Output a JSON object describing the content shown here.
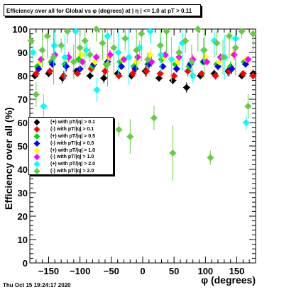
{
  "header": {
    "title": "Efficiency over all for Global vs φ (degrees) at | η | <= 1.0 at pT > 0.11",
    "timestamp": "Thu Oct 15 19:24:17 2020"
  },
  "chart_data": {
    "type": "scatter",
    "title": "Efficiency over all for Global vs φ (degrees) at | η | <= 1.0 at pT > 0.11",
    "xlabel": "φ (degrees)",
    "ylabel": "Efficiency over all (%)",
    "xlim": [
      -180,
      180
    ],
    "ylim": [
      0,
      100
    ],
    "x_ticks": [
      -150,
      -100,
      -50,
      0,
      50,
      100,
      150
    ],
    "x_tick_labels": [
      "−150",
      "−100",
      "−50",
      "0",
      "50",
      "100",
      "150"
    ],
    "y_ticks": [
      0,
      10,
      20,
      30,
      40,
      50,
      60,
      70,
      80,
      90,
      100
    ],
    "y_tick_labels": [
      "0",
      "10",
      "20",
      "30",
      "40",
      "50",
      "60",
      "70",
      "80",
      "90",
      "100"
    ],
    "grid": false,
    "legend_position": "left-middle",
    "series": [
      {
        "name": "(+) with pT/|q| > 0.1",
        "color": "#000000",
        "marker": "diamond",
        "x": [
          -172,
          -150,
          -128,
          -106,
          -84,
          -62,
          -40,
          -18,
          4,
          26,
          48,
          70,
          92,
          114,
          136,
          158,
          176
        ],
        "y": [
          80,
          81,
          79,
          82,
          80,
          79,
          81,
          80,
          82,
          79,
          78,
          75,
          80,
          81,
          82,
          80,
          81
        ]
      },
      {
        "name": "(-) with pT/|q| > 0.1",
        "color": "#ff0000",
        "marker": "diamond",
        "x": [
          -170,
          -148,
          -126,
          -104,
          -82,
          -60,
          -38,
          -16,
          6,
          28,
          50,
          72,
          94,
          116,
          138,
          160,
          176
        ],
        "y": [
          81,
          82,
          80,
          81,
          83,
          82,
          80,
          81,
          82,
          81,
          80,
          82,
          81,
          80,
          82,
          81,
          80
        ]
      },
      {
        "name": "(+) with pT/|q| > 0.5",
        "color": "#00dd00",
        "marker": "diamond",
        "x": [
          -168,
          -146,
          -124,
          -102,
          -80,
          -58,
          -36,
          -14,
          8,
          30,
          52,
          74,
          96,
          118,
          140,
          162
        ],
        "y": [
          84,
          86,
          85,
          87,
          84,
          85,
          86,
          84,
          85,
          87,
          85,
          84,
          86,
          85,
          84,
          86
        ]
      },
      {
        "name": "(-) with pT/|q| > 0.5",
        "color": "#0000ff",
        "marker": "diamond",
        "x": [
          -166,
          -144,
          -122,
          -100,
          -78,
          -56,
          -34,
          -12,
          10,
          32,
          54,
          76,
          98,
          120,
          142,
          164
        ],
        "y": [
          83,
          85,
          84,
          83,
          85,
          86,
          84,
          83,
          85,
          84,
          83,
          85,
          86,
          84,
          83,
          85
        ]
      },
      {
        "name": "(+) with pT/|q| > 1.0",
        "color": "#ffff00",
        "marker": "diamond",
        "x": [
          -164,
          -142,
          -120,
          -98,
          -76,
          -54,
          -32,
          -10,
          12,
          34,
          56,
          78,
          100,
          122,
          144,
          166
        ],
        "y": [
          86,
          88,
          87,
          89,
          86,
          88,
          87,
          86,
          89,
          88,
          86,
          87,
          88,
          86,
          89,
          87
        ]
      },
      {
        "name": "(-) with pT/|q| > 1.0",
        "color": "#ff00ff",
        "marker": "diamond",
        "x": [
          -162,
          -140,
          -118,
          -96,
          -74,
          -52,
          -30,
          -8,
          14,
          36,
          58,
          80,
          102,
          124,
          146,
          168
        ],
        "y": [
          87,
          89,
          88,
          86,
          88,
          89,
          87,
          88,
          86,
          89,
          88,
          87,
          86,
          88,
          89,
          87
        ]
      },
      {
        "name": "(+) with pT/|q| > 2.0",
        "color": "#00ffff",
        "marker": "diamond",
        "x": [
          -175,
          -158,
          -141,
          -124,
          -107,
          -90,
          -73,
          -56,
          -39,
          -22,
          -5,
          12,
          29,
          46,
          63,
          80,
          97,
          114,
          131,
          148,
          165
        ],
        "y": [
          90,
          67,
          93,
          88,
          99,
          91,
          74,
          97,
          90,
          88,
          92,
          99,
          89,
          87,
          94,
          80,
          91,
          95,
          88,
          96,
          60
        ]
      },
      {
        "name": "(-) with pT/|q| > 2.0",
        "color": "#66cc44",
        "marker": "diamond",
        "x": [
          -178,
          -170,
          -160,
          -152,
          -142,
          -130,
          -120,
          -110,
          -100,
          -92,
          -84,
          -74,
          -64,
          -56,
          -46,
          -38,
          -28,
          -20,
          -10,
          -2,
          8,
          18,
          28,
          38,
          48,
          58,
          68,
          78,
          88,
          98,
          108,
          118,
          128,
          138,
          148,
          158,
          168,
          176
        ],
        "y": [
          95,
          72,
          91,
          97,
          88,
          93,
          99,
          86,
          92,
          95,
          89,
          100,
          94,
          85,
          92,
          57,
          96,
          54,
          91,
          98,
          87,
          62,
          93,
          99,
          47,
          90,
          95,
          86,
          100,
          91,
          45,
          94,
          88,
          97,
          92,
          99,
          67,
          98
        ]
      }
    ]
  },
  "icons": {
    "marker": "diamond-marker-icon"
  }
}
